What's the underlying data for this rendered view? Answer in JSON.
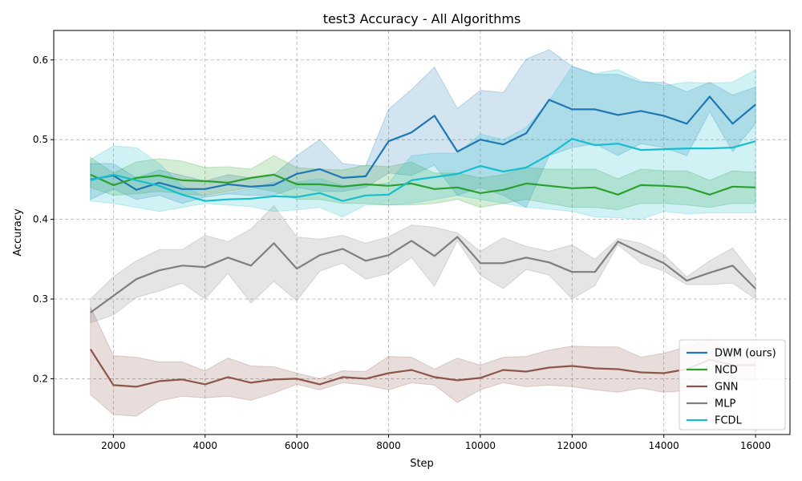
{
  "chart_data": {
    "type": "line",
    "title": "test3 Accuracy - All Algorithms",
    "xlabel": "Step",
    "ylabel": "Accuracy",
    "xlim": [
      700,
      16750
    ],
    "ylim": [
      0.13,
      0.637
    ],
    "xticks": [
      2000,
      4000,
      6000,
      8000,
      10000,
      12000,
      14000,
      16000
    ],
    "yticks": [
      0.2,
      0.3,
      0.4,
      0.5,
      0.6
    ],
    "grid": true,
    "legend_position": "lower-right",
    "x": [
      1500,
      2000,
      2500,
      3000,
      3500,
      4000,
      4500,
      5000,
      5500,
      6000,
      6500,
      7000,
      7500,
      8000,
      8500,
      9000,
      9500,
      10000,
      10500,
      11000,
      11500,
      12000,
      12500,
      13000,
      13500,
      14000,
      14500,
      15000,
      15500,
      16000
    ],
    "series": [
      {
        "name": "DWM (ours)",
        "color": "#1f77b4",
        "values": [
          0.45,
          0.455,
          0.437,
          0.446,
          0.438,
          0.438,
          0.444,
          0.441,
          0.443,
          0.457,
          0.463,
          0.452,
          0.454,
          0.498,
          0.509,
          0.53,
          0.485,
          0.5,
          0.494,
          0.508,
          0.55,
          0.538,
          0.538,
          0.531,
          0.536,
          0.53,
          0.52,
          0.554,
          0.52,
          0.544
        ],
        "lower": [
          0.425,
          0.438,
          0.425,
          0.43,
          0.42,
          0.428,
          0.432,
          0.43,
          0.43,
          0.44,
          0.435,
          0.435,
          0.44,
          0.458,
          0.455,
          0.468,
          0.43,
          0.44,
          0.43,
          0.415,
          0.48,
          0.49,
          0.495,
          0.48,
          0.495,
          0.49,
          0.48,
          0.535,
          0.485,
          0.52
        ],
        "upper": [
          0.47,
          0.47,
          0.452,
          0.462,
          0.455,
          0.448,
          0.456,
          0.452,
          0.456,
          0.48,
          0.5,
          0.47,
          0.467,
          0.538,
          0.563,
          0.591,
          0.539,
          0.562,
          0.559,
          0.601,
          0.613,
          0.592,
          0.582,
          0.582,
          0.572,
          0.572,
          0.56,
          0.572,
          0.556,
          0.566
        ]
      },
      {
        "name": "NCD",
        "color": "#2ca02c",
        "values": [
          0.456,
          0.443,
          0.452,
          0.455,
          0.449,
          0.448,
          0.446,
          0.452,
          0.456,
          0.444,
          0.444,
          0.441,
          0.444,
          0.442,
          0.445,
          0.438,
          0.44,
          0.433,
          0.437,
          0.445,
          0.442,
          0.439,
          0.44,
          0.431,
          0.443,
          0.442,
          0.44,
          0.431,
          0.441,
          0.44
        ],
        "lower": [
          0.44,
          0.43,
          0.432,
          0.435,
          0.432,
          0.43,
          0.435,
          0.44,
          0.435,
          0.425,
          0.425,
          0.42,
          0.42,
          0.418,
          0.418,
          0.42,
          0.425,
          0.415,
          0.42,
          0.425,
          0.42,
          0.415,
          0.415,
          0.412,
          0.42,
          0.42,
          0.418,
          0.415,
          0.42,
          0.42
        ],
        "upper": [
          0.478,
          0.458,
          0.472,
          0.476,
          0.473,
          0.465,
          0.466,
          0.463,
          0.48,
          0.465,
          0.463,
          0.462,
          0.468,
          0.466,
          0.472,
          0.458,
          0.458,
          0.452,
          0.456,
          0.465,
          0.463,
          0.463,
          0.463,
          0.451,
          0.463,
          0.461,
          0.461,
          0.449,
          0.461,
          0.459
        ]
      },
      {
        "name": "GNN",
        "color": "#8c564b",
        "values": [
          0.237,
          0.192,
          0.19,
          0.197,
          0.199,
          0.193,
          0.202,
          0.195,
          0.199,
          0.2,
          0.193,
          0.202,
          0.2,
          0.207,
          0.211,
          0.202,
          0.198,
          0.201,
          0.211,
          0.209,
          0.214,
          0.216,
          0.213,
          0.212,
          0.208,
          0.207,
          0.212,
          0.224,
          0.217,
          0.217
        ],
        "lower": [
          0.18,
          0.155,
          0.153,
          0.172,
          0.178,
          0.176,
          0.178,
          0.173,
          0.182,
          0.193,
          0.186,
          0.195,
          0.192,
          0.186,
          0.195,
          0.192,
          0.17,
          0.186,
          0.195,
          0.19,
          0.192,
          0.19,
          0.186,
          0.183,
          0.188,
          0.183,
          0.185,
          0.2,
          0.198,
          0.198
        ],
        "upper": [
          0.29,
          0.229,
          0.227,
          0.221,
          0.221,
          0.21,
          0.226,
          0.216,
          0.215,
          0.207,
          0.2,
          0.21,
          0.209,
          0.228,
          0.227,
          0.212,
          0.226,
          0.217,
          0.227,
          0.228,
          0.236,
          0.241,
          0.24,
          0.24,
          0.227,
          0.232,
          0.24,
          0.249,
          0.236,
          0.236
        ]
      },
      {
        "name": "MLP",
        "color": "#7f7f7f",
        "values": [
          0.283,
          0.304,
          0.325,
          0.336,
          0.342,
          0.34,
          0.352,
          0.342,
          0.37,
          0.338,
          0.355,
          0.363,
          0.348,
          0.355,
          0.373,
          0.354,
          0.378,
          0.345,
          0.345,
          0.352,
          0.346,
          0.334,
          0.334,
          0.372,
          0.358,
          0.345,
          0.323,
          0.333,
          0.342,
          0.313
        ],
        "lower": [
          0.27,
          0.28,
          0.302,
          0.31,
          0.32,
          0.3,
          0.332,
          0.295,
          0.322,
          0.298,
          0.335,
          0.345,
          0.325,
          0.332,
          0.352,
          0.316,
          0.373,
          0.33,
          0.313,
          0.337,
          0.33,
          0.3,
          0.317,
          0.368,
          0.345,
          0.335,
          0.318,
          0.318,
          0.32,
          0.3
        ],
        "upper": [
          0.3,
          0.328,
          0.348,
          0.362,
          0.362,
          0.38,
          0.372,
          0.388,
          0.417,
          0.378,
          0.375,
          0.38,
          0.37,
          0.378,
          0.393,
          0.39,
          0.383,
          0.36,
          0.377,
          0.366,
          0.36,
          0.368,
          0.35,
          0.376,
          0.37,
          0.356,
          0.328,
          0.348,
          0.364,
          0.327
        ]
      },
      {
        "name": "FCDL",
        "color": "#17becf",
        "values": [
          0.449,
          0.456,
          0.449,
          0.442,
          0.431,
          0.423,
          0.425,
          0.426,
          0.429,
          0.428,
          0.433,
          0.423,
          0.43,
          0.431,
          0.449,
          0.453,
          0.457,
          0.467,
          0.46,
          0.465,
          0.481,
          0.501,
          0.493,
          0.495,
          0.487,
          0.488,
          0.489,
          0.489,
          0.49,
          0.498
        ],
        "lower": [
          0.423,
          0.42,
          0.415,
          0.41,
          0.415,
          0.42,
          0.418,
          0.416,
          0.41,
          0.412,
          0.415,
          0.403,
          0.418,
          0.418,
          0.42,
          0.425,
          0.43,
          0.425,
          0.42,
          0.415,
          0.413,
          0.41,
          0.403,
          0.402,
          0.4,
          0.41,
          0.407,
          0.408,
          0.408,
          0.408
        ],
        "upper": [
          0.475,
          0.492,
          0.49,
          0.47,
          0.442,
          0.428,
          0.433,
          0.438,
          0.447,
          0.447,
          0.451,
          0.443,
          0.442,
          0.446,
          0.48,
          0.483,
          0.483,
          0.507,
          0.5,
          0.515,
          0.549,
          0.592,
          0.583,
          0.588,
          0.574,
          0.568,
          0.572,
          0.571,
          0.572,
          0.588
        ]
      }
    ]
  }
}
